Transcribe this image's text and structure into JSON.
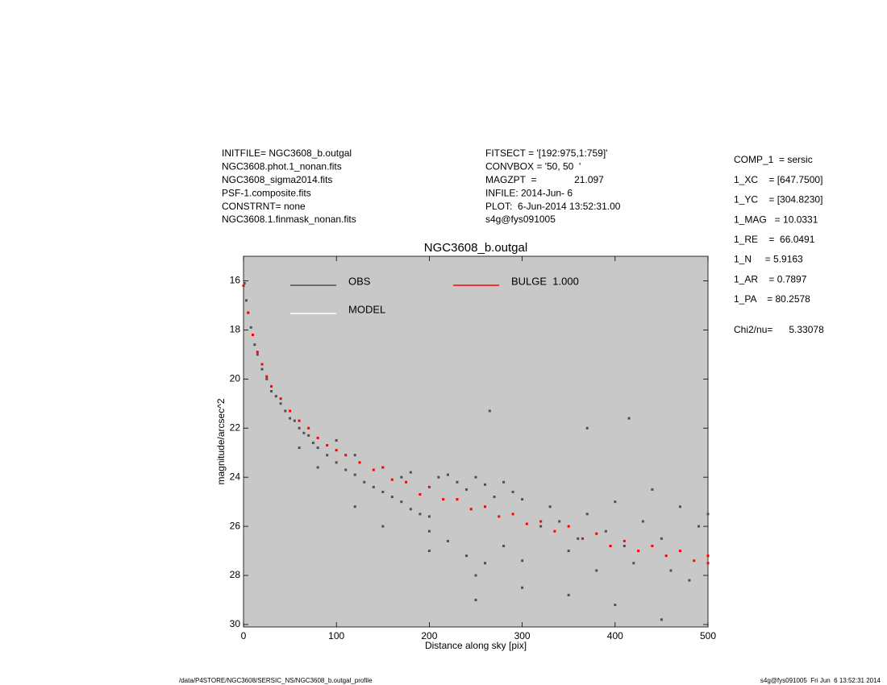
{
  "header": {
    "left": [
      "INITFILE= NGC3608_b.outgal",
      "NGC3608.phot.1_nonan.fits",
      "NGC3608_sigma2014.fits",
      "PSF-1.composite.fits",
      "CONSTRNT= none",
      "NGC3608.1.finmask_nonan.fits"
    ],
    "middle": [
      "FITSECT = '[192:975,1:759]'",
      "CONVBOX = '50, 50  '",
      "MAGZPT  =              21.097",
      "INFILE: 2014-Jun- 6",
      "PLOT:  6-Jun-2014 13:52:31.00",
      "s4g@fys091005"
    ],
    "right": [
      "COMP_1  = sersic",
      "1_XC    = [647.7500]",
      "1_YC    = [304.8230]",
      "1_MAG   = 10.0331",
      "1_RE    =  66.0491",
      "1_N     = 5.9163",
      "1_AR    = 0.7897",
      "1_PA    = 80.2578"
    ],
    "chi": "Chi2/nu=      5.33078"
  },
  "footer": {
    "left": "/data/P4STORE/NGC3608/SERSIC_NS/NGC3608_b.outgal_profile",
    "right": "s4g@fys091005  Fri Jun  6 13:52:31 2014"
  },
  "chart_data": {
    "type": "scatter",
    "title": "NGC3608_b.outgal",
    "x_label": "Distance along sky [pix]",
    "y_label": "magnitude/arcsec^2",
    "xlim": [
      0,
      500
    ],
    "xticks": [
      0,
      100,
      200,
      300,
      400,
      500
    ],
    "ylim": [
      30.1,
      15
    ],
    "yticks": [
      16,
      18,
      20,
      22,
      24,
      26,
      28,
      30
    ],
    "background": "#c8c8c8",
    "series": [
      {
        "name": "OBS",
        "color": "#505050",
        "x": [
          1,
          3,
          5,
          8,
          12,
          15,
          20,
          25,
          30,
          35,
          40,
          45,
          50,
          55,
          60,
          65,
          70,
          75,
          80,
          90,
          100,
          110,
          120,
          130,
          140,
          150,
          160,
          170,
          180,
          190,
          200,
          210,
          220,
          230,
          240,
          250,
          260,
          270,
          280,
          290,
          300,
          200,
          220,
          240,
          250,
          260,
          280,
          300,
          320,
          330,
          340,
          350,
          360,
          370,
          380,
          390,
          400,
          410,
          420,
          430,
          440,
          450,
          460,
          470,
          480,
          490,
          500,
          265,
          370,
          415,
          100,
          120,
          150,
          170,
          180,
          300,
          350,
          250,
          400,
          450,
          200,
          150,
          120,
          80,
          60
        ],
        "values": [
          16.1,
          16.8,
          17.3,
          17.9,
          18.6,
          19.0,
          19.6,
          20.0,
          20.5,
          20.7,
          21.0,
          21.3,
          21.6,
          21.7,
          22.0,
          22.2,
          22.3,
          22.6,
          22.8,
          23.1,
          23.4,
          23.7,
          23.9,
          24.2,
          24.4,
          24.6,
          24.8,
          25.0,
          25.3,
          25.5,
          25.6,
          24.0,
          23.9,
          24.2,
          24.5,
          24.0,
          24.3,
          24.8,
          24.2,
          24.6,
          24.9,
          26.2,
          26.6,
          27.2,
          28.0,
          27.5,
          26.8,
          27.4,
          26.0,
          25.2,
          25.8,
          27.0,
          26.5,
          25.5,
          27.8,
          26.2,
          25.0,
          26.8,
          27.5,
          25.8,
          24.5,
          26.5,
          27.8,
          25.2,
          28.2,
          26.0,
          25.5,
          21.3,
          22.0,
          21.6,
          22.5,
          23.1,
          23.6,
          24.0,
          23.8,
          28.5,
          28.8,
          29.0,
          29.2,
          29.8,
          27.0,
          26.0,
          25.2,
          23.6,
          22.8
        ]
      },
      {
        "name": "MODEL",
        "color": "#ffffff",
        "x": [],
        "values": []
      },
      {
        "name": "BULGE  1.000",
        "color": "#ff0000",
        "x": [
          0,
          5,
          10,
          15,
          20,
          25,
          30,
          40,
          50,
          60,
          70,
          80,
          90,
          100,
          110,
          125,
          140,
          150,
          160,
          175,
          190,
          200,
          215,
          230,
          245,
          260,
          275,
          290,
          305,
          320,
          335,
          350,
          365,
          380,
          395,
          410,
          425,
          440,
          455,
          470,
          485,
          500,
          500
        ],
        "values": [
          16.2,
          17.3,
          18.2,
          18.9,
          19.4,
          19.9,
          20.3,
          20.8,
          21.3,
          21.7,
          22.0,
          22.4,
          22.7,
          22.9,
          23.1,
          23.4,
          23.7,
          23.6,
          24.1,
          24.2,
          24.7,
          24.4,
          24.9,
          24.9,
          25.3,
          25.2,
          25.6,
          25.5,
          25.9,
          25.8,
          26.2,
          26.0,
          26.5,
          26.3,
          26.8,
          26.6,
          27.0,
          26.8,
          27.2,
          27.0,
          27.4,
          27.2,
          27.5
        ]
      }
    ]
  }
}
